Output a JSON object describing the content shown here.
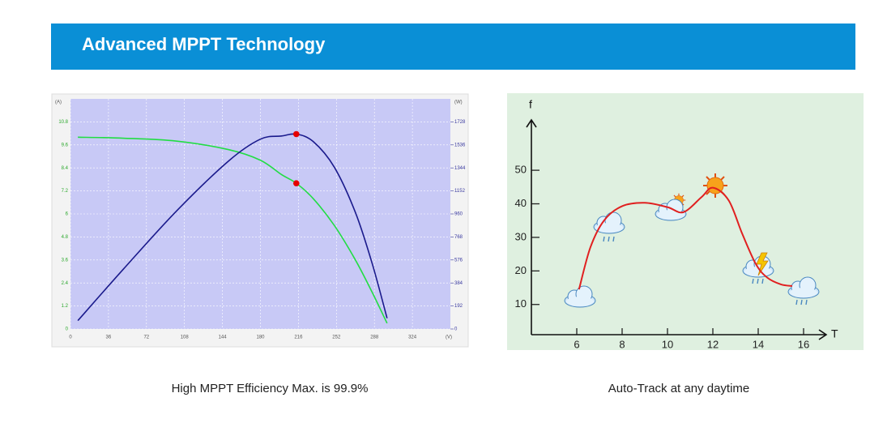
{
  "header": {
    "title": "Advanced MPPT Technology"
  },
  "chart_data": [
    {
      "type": "line",
      "caption": "High MPPT Efficiency Max. is 99.9%",
      "x_label": "(V)",
      "y_label": "(A)",
      "y2_label": "(W)",
      "xlim": [
        0,
        360
      ],
      "ylim": [
        0,
        12
      ],
      "y2lim": [
        0,
        1920
      ],
      "xticks": [
        0,
        36,
        72,
        108,
        144,
        180,
        216,
        252,
        288,
        324
      ],
      "yticks": [
        0,
        1.2,
        2.4,
        3.6,
        4.8,
        6,
        7.2,
        8.4,
        9.6,
        10.8
      ],
      "y2ticks": [
        0,
        192,
        384,
        576,
        768,
        960,
        1152,
        1344,
        1536,
        1728
      ],
      "grid": true,
      "x": [
        7,
        50,
        100,
        150,
        180,
        200,
        214,
        230,
        250,
        270,
        286,
        300
      ],
      "series": [
        {
          "color": "#22dd44",
          "values": [
            10.0,
            9.95,
            9.8,
            9.35,
            8.8,
            8.05,
            7.6,
            6.8,
            5.4,
            3.6,
            1.9,
            0.3
          ]
        },
        {
          "color": "#1a1a8c",
          "axis": "y2",
          "values": [
            70,
            498,
            980,
            1403,
            1584,
            1610,
            1626,
            1564,
            1350,
            972,
            543,
            90
          ]
        }
      ],
      "markers": {
        "x": 214,
        "values": [
          7.6,
          1626
        ],
        "color": "#e60000"
      }
    },
    {
      "type": "line",
      "caption": "Auto-Track  at any daytime",
      "x_label": "T",
      "y_label": "f",
      "xlim": [
        4,
        17
      ],
      "ylim": [
        1,
        65
      ],
      "xticks": [
        6,
        8,
        10,
        12,
        14,
        16
      ],
      "yticks": [
        10,
        20,
        30,
        40,
        50
      ],
      "grid": false,
      "x": [
        6.1,
        6.6,
        7.2,
        8,
        9,
        10,
        10.7,
        11.5,
        12,
        12.7,
        13.3,
        13.9,
        14.4,
        15,
        15.5
      ],
      "series": [
        {
          "color": "#e02020",
          "values": [
            14.5,
            27,
            35,
            39.3,
            40.3,
            39,
            37.5,
            42,
            44.8,
            41,
            31,
            22,
            18,
            16,
            15.5
          ]
        }
      ]
    }
  ]
}
